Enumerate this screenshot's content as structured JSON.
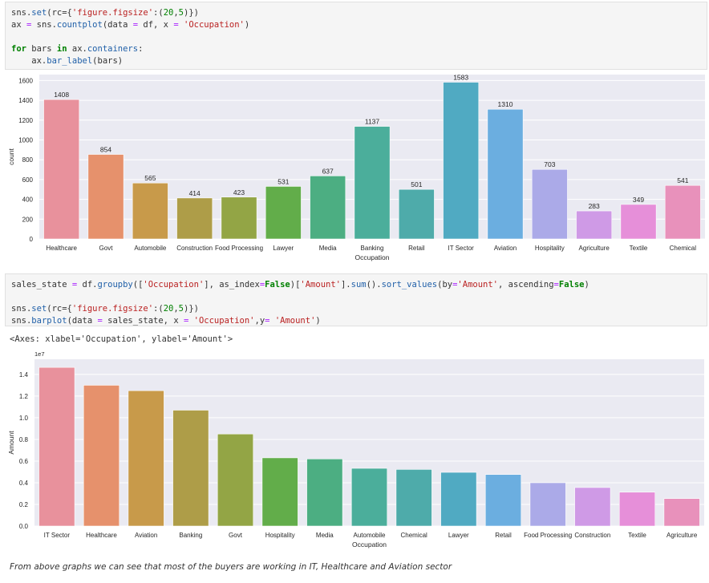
{
  "cells": [
    {
      "type": "code",
      "lines": [
        [
          {
            "t": "sns.",
            "c": ""
          },
          {
            "t": "set",
            "c": "fn"
          },
          {
            "t": "(rc={",
            "c": ""
          },
          {
            "t": "'figure.figsize'",
            "c": "str"
          },
          {
            "t": ":(",
            "c": ""
          },
          {
            "t": "20",
            "c": "num"
          },
          {
            "t": ",",
            "c": ""
          },
          {
            "t": "5",
            "c": "num"
          },
          {
            "t": ")})",
            "c": ""
          }
        ],
        [
          {
            "t": "ax ",
            "c": ""
          },
          {
            "t": "=",
            "c": "op"
          },
          {
            "t": " sns.",
            "c": ""
          },
          {
            "t": "countplot",
            "c": "fn"
          },
          {
            "t": "(data ",
            "c": ""
          },
          {
            "t": "=",
            "c": "op"
          },
          {
            "t": " df, x ",
            "c": ""
          },
          {
            "t": "=",
            "c": "op"
          },
          {
            "t": " ",
            "c": ""
          },
          {
            "t": "'Occupation'",
            "c": "str"
          },
          {
            "t": ")",
            "c": ""
          }
        ],
        [],
        [
          {
            "t": "for",
            "c": "kw"
          },
          {
            "t": " bars ",
            "c": ""
          },
          {
            "t": "in",
            "c": "kw"
          },
          {
            "t": " ax.",
            "c": ""
          },
          {
            "t": "containers",
            "c": "fn"
          },
          {
            "t": ":",
            "c": ""
          }
        ],
        [
          {
            "t": "    ax.",
            "c": ""
          },
          {
            "t": "bar_label",
            "c": "fn"
          },
          {
            "t": "(bars)",
            "c": ""
          }
        ]
      ]
    },
    {
      "type": "code",
      "lines": [
        [
          {
            "t": "sales_state ",
            "c": ""
          },
          {
            "t": "=",
            "c": "op"
          },
          {
            "t": " df.",
            "c": ""
          },
          {
            "t": "groupby",
            "c": "fn"
          },
          {
            "t": "([",
            "c": ""
          },
          {
            "t": "'Occupation'",
            "c": "str"
          },
          {
            "t": "], as_index",
            "c": ""
          },
          {
            "t": "=",
            "c": "op"
          },
          {
            "t": "False",
            "c": "kw"
          },
          {
            "t": ")[",
            "c": ""
          },
          {
            "t": "'Amount'",
            "c": "str"
          },
          {
            "t": "].",
            "c": ""
          },
          {
            "t": "sum",
            "c": "fn"
          },
          {
            "t": "().",
            "c": ""
          },
          {
            "t": "sort_values",
            "c": "fn"
          },
          {
            "t": "(by",
            "c": ""
          },
          {
            "t": "=",
            "c": "op"
          },
          {
            "t": "'Amount'",
            "c": "str"
          },
          {
            "t": ", ascending",
            "c": ""
          },
          {
            "t": "=",
            "c": "op"
          },
          {
            "t": "False",
            "c": "kw"
          },
          {
            "t": ")",
            "c": ""
          }
        ],
        [],
        [
          {
            "t": "sns.",
            "c": ""
          },
          {
            "t": "set",
            "c": "fn"
          },
          {
            "t": "(rc={",
            "c": ""
          },
          {
            "t": "'figure.figsize'",
            "c": "str"
          },
          {
            "t": ":(",
            "c": ""
          },
          {
            "t": "20",
            "c": "num"
          },
          {
            "t": ",",
            "c": ""
          },
          {
            "t": "5",
            "c": "num"
          },
          {
            "t": ")})",
            "c": ""
          }
        ],
        [
          {
            "t": "sns.",
            "c": ""
          },
          {
            "t": "barplot",
            "c": "fn"
          },
          {
            "t": "(data ",
            "c": ""
          },
          {
            "t": "=",
            "c": "op"
          },
          {
            "t": " sales_state, x ",
            "c": ""
          },
          {
            "t": "=",
            "c": "op"
          },
          {
            "t": " ",
            "c": ""
          },
          {
            "t": "'Occupation'",
            "c": "str"
          },
          {
            "t": ",y",
            "c": ""
          },
          {
            "t": "=",
            "c": "op"
          },
          {
            "t": " ",
            "c": ""
          },
          {
            "t": "'Amount'",
            "c": "str"
          },
          {
            "t": ")",
            "c": ""
          }
        ]
      ]
    }
  ],
  "output_text": "<Axes: xlabel='Occupation', ylabel='Amount'>",
  "markdown_text": "From above graphs we can see that most of the buyers are working in IT, Healthcare and Aviation sector",
  "palette": [
    "#e8919c",
    "#e6916c",
    "#c89a4a",
    "#ae9d48",
    "#93a545",
    "#62ad4a",
    "#4cae82",
    "#4bae9b",
    "#4eabaa",
    "#50aac2",
    "#6baee0",
    "#abaae8",
    "#cf9ae6",
    "#e68fd9",
    "#e891bb"
  ],
  "chart_data": [
    {
      "type": "bar",
      "title": "",
      "xlabel": "Occupation",
      "ylabel": "count",
      "ylim": [
        0,
        1660
      ],
      "yticks": [
        0,
        200,
        400,
        600,
        800,
        1000,
        1200,
        1400,
        1600
      ],
      "ytick_labels": [
        "0",
        "200",
        "400",
        "600",
        "800",
        "1000",
        "1200",
        "1400",
        "1600"
      ],
      "grid": true,
      "categories": [
        "Healthcare",
        "Govt",
        "Automobile",
        "Construction",
        "Food Processing",
        "Lawyer",
        "Media",
        "Banking",
        "Retail",
        "IT Sector",
        "Aviation",
        "Hospitality",
        "Agriculture",
        "Textile",
        "Chemical"
      ],
      "values": [
        1408,
        854,
        565,
        414,
        423,
        531,
        637,
        1137,
        501,
        1583,
        1310,
        703,
        283,
        349,
        541
      ],
      "data_labels": [
        "1408",
        "854",
        "565",
        "414",
        "423",
        "531",
        "637",
        "1137",
        "501",
        "1583",
        "1310",
        "703",
        "283",
        "349",
        "541"
      ]
    },
    {
      "type": "bar",
      "title": "",
      "xlabel": "Occupation",
      "ylabel": "Amount",
      "offset_label": "1e7",
      "ylim": [
        0,
        1.54
      ],
      "yticks": [
        0.0,
        0.2,
        0.4,
        0.6,
        0.8,
        1.0,
        1.2,
        1.4
      ],
      "ytick_labels": [
        "0.0",
        "0.2",
        "0.4",
        "0.6",
        "0.8",
        "1.0",
        "1.2",
        "1.4"
      ],
      "grid": true,
      "categories": [
        "IT Sector",
        "Healthcare",
        "Aviation",
        "Banking",
        "Govt",
        "Hospitality",
        "Media",
        "Automobile",
        "Chemical",
        "Lawyer",
        "Retail",
        "Food Processing",
        "Construction",
        "Textile",
        "Agriculture"
      ],
      "values": [
        1.465,
        1.3,
        1.25,
        1.07,
        0.85,
        0.63,
        0.62,
        0.533,
        0.523,
        0.496,
        0.476,
        0.4,
        0.356,
        0.313,
        0.254
      ],
      "value_unit_multiplier": 10000000
    }
  ]
}
